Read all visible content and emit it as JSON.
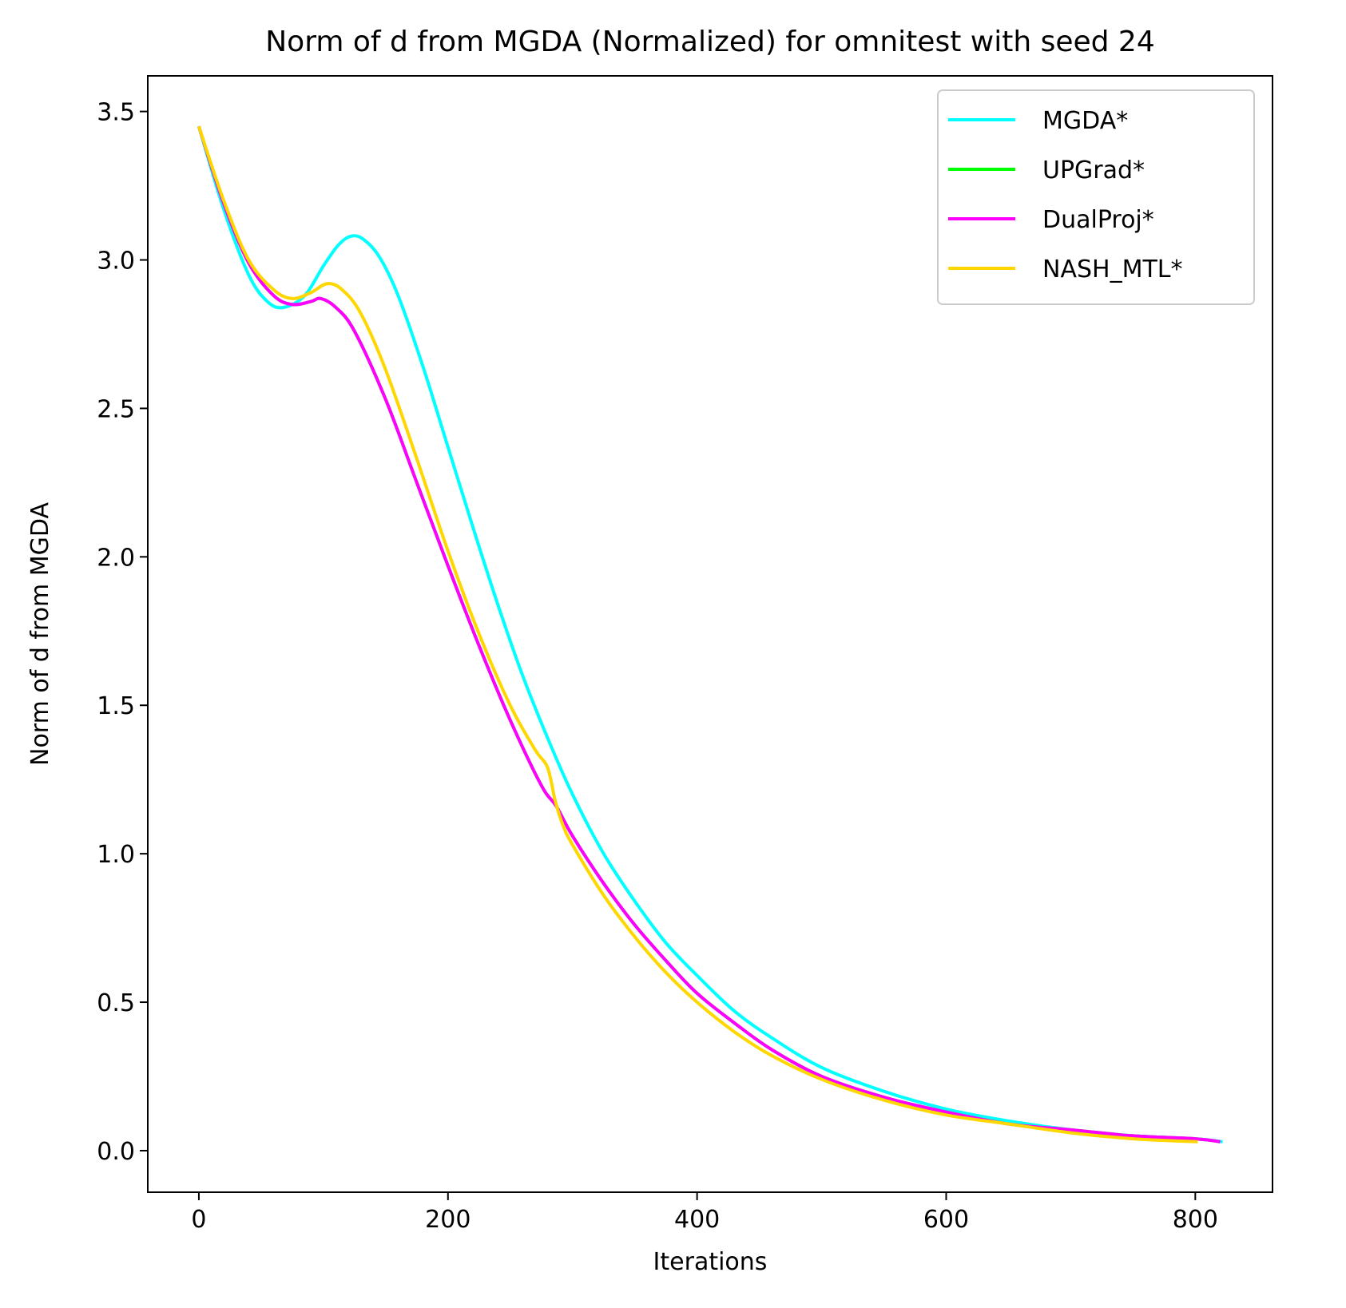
{
  "chart_data": {
    "type": "line",
    "title": "Norm of d from MGDA (Normalized) for omnitest with seed 24",
    "xlabel": "Iterations",
    "ylabel": "Norm of d from MGDA",
    "xlim": [
      -41,
      862
    ],
    "ylim": [
      -0.14,
      3.62
    ],
    "xticks": [
      0,
      200,
      400,
      600,
      800
    ],
    "yticks": [
      0.0,
      0.5,
      1.0,
      1.5,
      2.0,
      2.5,
      3.0,
      3.5
    ],
    "xtick_labels": [
      "0",
      "200",
      "400",
      "600",
      "800"
    ],
    "ytick_labels": [
      "0.0",
      "0.5",
      "1.0",
      "1.5",
      "2.0",
      "2.5",
      "3.0",
      "3.5"
    ],
    "grid": false,
    "legend_position": "top-right",
    "series": [
      {
        "name": "MGDA*",
        "color": "#00ffff",
        "x": [
          0,
          20,
          40,
          55,
          68,
          85,
          100,
          112,
          122,
          132,
          145,
          160,
          180,
          200,
          220,
          240,
          260,
          280,
          300,
          325,
          350,
          375,
          400,
          430,
          460,
          500,
          550,
          600,
          650,
          700,
          750,
          800,
          822
        ],
        "y": [
          3.45,
          3.17,
          2.95,
          2.86,
          2.84,
          2.88,
          2.98,
          3.05,
          3.08,
          3.07,
          3.01,
          2.88,
          2.64,
          2.37,
          2.1,
          1.84,
          1.6,
          1.39,
          1.2,
          1.0,
          0.84,
          0.7,
          0.59,
          0.47,
          0.38,
          0.28,
          0.2,
          0.14,
          0.1,
          0.07,
          0.05,
          0.04,
          0.03
        ]
      },
      {
        "name": "UPGrad*",
        "color": "#00ff00",
        "x": [
          0,
          20,
          40,
          60,
          75,
          90,
          98,
          110,
          125,
          150,
          175,
          200,
          225,
          250,
          275,
          287,
          300,
          325,
          350,
          375,
          400,
          430,
          460,
          500,
          550,
          600,
          650,
          700,
          750,
          800,
          820
        ],
        "y": [
          3.45,
          3.19,
          2.99,
          2.88,
          2.85,
          2.86,
          2.87,
          2.84,
          2.76,
          2.53,
          2.25,
          1.97,
          1.7,
          1.45,
          1.23,
          1.16,
          1.06,
          0.9,
          0.76,
          0.64,
          0.53,
          0.43,
          0.34,
          0.25,
          0.18,
          0.13,
          0.09,
          0.07,
          0.05,
          0.04,
          0.03
        ]
      },
      {
        "name": "DualProj*",
        "color": "#ff00ff",
        "x": [
          0,
          20,
          40,
          60,
          75,
          90,
          98,
          110,
          125,
          150,
          175,
          200,
          225,
          250,
          275,
          287,
          300,
          325,
          350,
          375,
          400,
          430,
          460,
          500,
          550,
          600,
          650,
          700,
          750,
          800,
          820
        ],
        "y": [
          3.45,
          3.19,
          2.99,
          2.88,
          2.85,
          2.86,
          2.87,
          2.84,
          2.76,
          2.53,
          2.25,
          1.97,
          1.7,
          1.45,
          1.23,
          1.16,
          1.06,
          0.9,
          0.76,
          0.64,
          0.53,
          0.43,
          0.34,
          0.25,
          0.18,
          0.13,
          0.09,
          0.07,
          0.05,
          0.04,
          0.03
        ]
      },
      {
        "name": "NASH_MTL*",
        "color": "#ffd700",
        "x": [
          0,
          20,
          40,
          60,
          75,
          90,
          103,
          115,
          130,
          150,
          175,
          200,
          225,
          250,
          270,
          280,
          286,
          292,
          300,
          325,
          350,
          375,
          400,
          430,
          460,
          500,
          550,
          600,
          650,
          700,
          750,
          802
        ],
        "y": [
          3.45,
          3.2,
          3.0,
          2.9,
          2.87,
          2.89,
          2.92,
          2.9,
          2.82,
          2.63,
          2.33,
          2.02,
          1.74,
          1.5,
          1.35,
          1.29,
          1.18,
          1.1,
          1.03,
          0.86,
          0.72,
          0.6,
          0.5,
          0.4,
          0.32,
          0.24,
          0.17,
          0.12,
          0.09,
          0.06,
          0.04,
          0.03
        ]
      }
    ]
  }
}
